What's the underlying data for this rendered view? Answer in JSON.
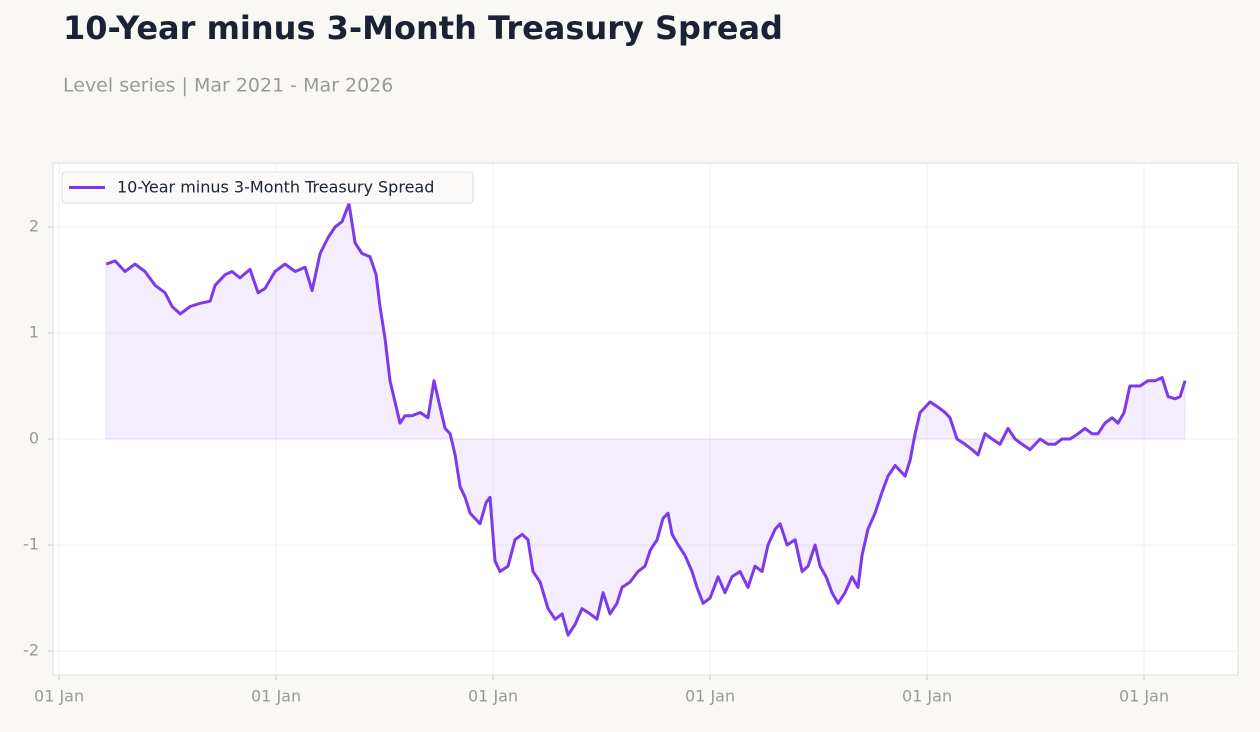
{
  "chart_data": {
    "type": "line",
    "title": "10-Year minus 3-Month Treasury Spread",
    "subtitle": "Level series | Mar 2021 - Mar 2026",
    "x": [
      2021.217,
      2021.258,
      2021.304,
      2021.35,
      2021.396,
      2021.442,
      2021.488,
      2021.521,
      2021.558,
      2021.604,
      2021.65,
      2021.696,
      2021.719,
      2021.765,
      2021.797,
      2021.834,
      2021.88,
      2021.917,
      2021.949,
      2021.995,
      2022.041,
      2022.088,
      2022.134,
      2022.166,
      2022.203,
      2022.24,
      2022.272,
      2022.304,
      2022.336,
      2022.364,
      2022.396,
      2022.433,
      2022.461,
      2022.479,
      2022.502,
      2022.525,
      2022.548,
      2022.571,
      2022.594,
      2022.627,
      2022.664,
      2022.7,
      2022.728,
      2022.756,
      2022.779,
      2022.802,
      2022.825,
      2022.848,
      2022.871,
      2022.894,
      2022.917,
      2022.94,
      2022.968,
      2022.986,
      2023.009,
      2023.032,
      2023.069,
      2023.101,
      2023.134,
      2023.161,
      2023.184,
      2023.217,
      2023.253,
      2023.286,
      2023.318,
      2023.346,
      2023.378,
      2023.41,
      2023.447,
      2023.479,
      2023.507,
      2023.539,
      2023.571,
      2023.594,
      2023.631,
      2023.668,
      2023.7,
      2023.724,
      2023.756,
      2023.783,
      2023.806,
      2023.825,
      2023.853,
      2023.885,
      2023.917,
      2023.94,
      2023.968,
      2024.0,
      2024.037,
      2024.069,
      2024.101,
      2024.138,
      2024.175,
      2024.207,
      2024.24,
      2024.267,
      2024.3,
      2024.323,
      2024.355,
      2024.392,
      2024.424,
      2024.452,
      2024.484,
      2024.507,
      2024.535,
      2024.562,
      2024.59,
      2024.622,
      2024.654,
      2024.682,
      2024.7,
      2024.728,
      2024.76,
      2024.793,
      2024.82,
      2024.853,
      2024.876,
      2024.899,
      2024.922,
      2024.945,
      2024.968,
      2025.014,
      2025.051,
      2025.083,
      2025.106,
      2025.138,
      2025.175,
      2025.207,
      2025.235,
      2025.267,
      2025.3,
      2025.336,
      2025.373,
      2025.406,
      2025.438,
      2025.475,
      2025.521,
      2025.558,
      2025.59,
      2025.622,
      2025.659,
      2025.696,
      2025.728,
      2025.76,
      2025.788,
      2025.82,
      2025.853,
      2025.88,
      2025.908,
      2025.935,
      2025.982,
      2026.018,
      2026.051,
      2026.083,
      2026.111,
      2026.143,
      2026.166,
      2026.189
    ],
    "series": [
      {
        "name": "10-Year minus 3-Month Treasury Spread",
        "color": "#7c3aed",
        "values": [
          1.65,
          1.68,
          1.58,
          1.65,
          1.58,
          1.45,
          1.38,
          1.25,
          1.18,
          1.25,
          1.28,
          1.3,
          1.45,
          1.55,
          1.58,
          1.52,
          1.6,
          1.38,
          1.42,
          1.58,
          1.65,
          1.58,
          1.62,
          1.4,
          1.75,
          1.9,
          2.0,
          2.05,
          2.22,
          1.85,
          1.75,
          1.72,
          1.55,
          1.25,
          0.95,
          0.55,
          0.35,
          0.15,
          0.22,
          0.22,
          0.25,
          0.2,
          0.55,
          0.3,
          0.1,
          0.05,
          -0.15,
          -0.45,
          -0.55,
          -0.7,
          -0.75,
          -0.8,
          -0.6,
          -0.55,
          -1.15,
          -1.25,
          -1.2,
          -0.95,
          -0.9,
          -0.95,
          -1.25,
          -1.35,
          -1.6,
          -1.7,
          -1.65,
          -1.85,
          -1.75,
          -1.6,
          -1.65,
          -1.7,
          -1.45,
          -1.65,
          -1.55,
          -1.4,
          -1.35,
          -1.25,
          -1.2,
          -1.05,
          -0.95,
          -0.75,
          -0.7,
          -0.9,
          -1.0,
          -1.1,
          -1.25,
          -1.4,
          -1.55,
          -1.5,
          -1.3,
          -1.45,
          -1.3,
          -1.25,
          -1.4,
          -1.2,
          -1.25,
          -1.0,
          -0.85,
          -0.8,
          -1.0,
          -0.95,
          -1.25,
          -1.2,
          -1.0,
          -1.2,
          -1.3,
          -1.45,
          -1.55,
          -1.45,
          -1.3,
          -1.4,
          -1.1,
          -0.85,
          -0.7,
          -0.5,
          -0.35,
          -0.25,
          -0.3,
          -0.35,
          -0.2,
          0.05,
          0.25,
          0.35,
          0.3,
          0.25,
          0.2,
          0.0,
          -0.05,
          -0.1,
          -0.15,
          0.05,
          0.0,
          -0.05,
          0.1,
          0.0,
          -0.05,
          -0.1,
          0.0,
          -0.05,
          -0.05,
          0.0,
          0.0,
          0.05,
          0.1,
          0.05,
          0.05,
          0.15,
          0.2,
          0.15,
          0.25,
          0.5,
          0.5,
          0.55,
          0.55,
          0.58,
          0.4,
          0.38,
          0.4,
          0.55
        ]
      }
    ],
    "xlim": [
      2020.972,
      2026.433
    ],
    "xticks": [
      {
        "value": 2021,
        "label": "01 Jan"
      },
      {
        "value": 2022,
        "label": "01 Jan"
      },
      {
        "value": 2023,
        "label": "01 Jan"
      },
      {
        "value": 2024,
        "label": "01 Jan"
      },
      {
        "value": 2025,
        "label": "01 Jan"
      },
      {
        "value": 2026,
        "label": "01 Jan"
      }
    ],
    "ylim": [
      -2.226,
      2.604
    ],
    "yticks": [
      -2,
      -1,
      0,
      1,
      2
    ],
    "grid": true,
    "area_fill": true,
    "legend": "upper-left"
  }
}
